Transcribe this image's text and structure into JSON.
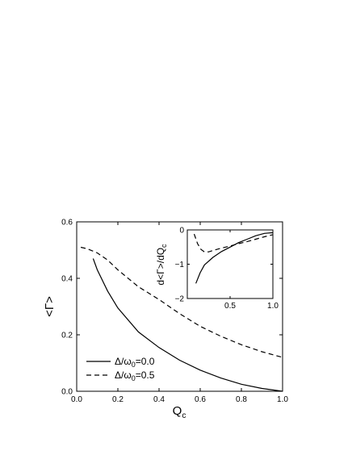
{
  "chart_data": [
    {
      "type": "line",
      "xlabel_main": "Q",
      "xlabel_sub": "c",
      "ylabel": "<Γ>",
      "xlim": [
        0.0,
        1.0
      ],
      "ylim": [
        0.0,
        0.6
      ],
      "xticks": [
        "0.0",
        "0.2",
        "0.4",
        "0.6",
        "0.8",
        "1.0"
      ],
      "xtick_values": [
        0.0,
        0.2,
        0.4,
        0.6,
        0.8,
        1.0
      ],
      "yticks": [
        "0.0",
        "0.2",
        "0.4",
        "0.6"
      ],
      "ytick_values": [
        0.0,
        0.2,
        0.4,
        0.6
      ],
      "legend_position": "bottom-left",
      "series": [
        {
          "name_main": "Δ/ω",
          "name_sub": "0",
          "name_rest": "=0.0",
          "style": "solid",
          "points": [
            [
              0.08,
              0.47
            ],
            [
              0.1,
              0.43
            ],
            [
              0.15,
              0.355
            ],
            [
              0.2,
              0.295
            ],
            [
              0.3,
              0.21
            ],
            [
              0.4,
              0.155
            ],
            [
              0.5,
              0.11
            ],
            [
              0.6,
              0.075
            ],
            [
              0.7,
              0.047
            ],
            [
              0.8,
              0.025
            ],
            [
              0.9,
              0.01
            ],
            [
              1.0,
              0.0
            ]
          ]
        },
        {
          "name_main": "Δ/ω",
          "name_sub": "0",
          "name_rest": "=0.5",
          "style": "dashed",
          "points": [
            [
              0.02,
              0.51
            ],
            [
              0.05,
              0.505
            ],
            [
              0.1,
              0.49
            ],
            [
              0.15,
              0.465
            ],
            [
              0.2,
              0.43
            ],
            [
              0.3,
              0.37
            ],
            [
              0.4,
              0.325
            ],
            [
              0.5,
              0.275
            ],
            [
              0.6,
              0.23
            ],
            [
              0.7,
              0.195
            ],
            [
              0.8,
              0.165
            ],
            [
              0.9,
              0.14
            ],
            [
              1.0,
              0.12
            ]
          ]
        }
      ]
    },
    {
      "type": "line",
      "role": "inset",
      "ylabel": "d<Γ>/dQ",
      "ylabel_sub": "c",
      "xlim": [
        0.0,
        1.0
      ],
      "ylim": [
        -2.0,
        0.0
      ],
      "xticks": [
        "0.5",
        "1.0"
      ],
      "xtick_values": [
        0.5,
        1.0
      ],
      "yticks": [
        "0",
        "−1",
        "−2"
      ],
      "ytick_values": [
        0,
        -1,
        -2
      ],
      "series": [
        {
          "style": "solid",
          "points": [
            [
              0.1,
              -1.56
            ],
            [
              0.15,
              -1.25
            ],
            [
              0.2,
              -1.02
            ],
            [
              0.3,
              -0.8
            ],
            [
              0.4,
              -0.63
            ],
            [
              0.5,
              -0.5
            ],
            [
              0.6,
              -0.37
            ],
            [
              0.7,
              -0.27
            ],
            [
              0.8,
              -0.17
            ],
            [
              0.9,
              -0.1
            ],
            [
              1.0,
              -0.08
            ]
          ]
        },
        {
          "style": "dashed",
          "points": [
            [
              0.08,
              -0.12
            ],
            [
              0.12,
              -0.4
            ],
            [
              0.16,
              -0.57
            ],
            [
              0.2,
              -0.64
            ],
            [
              0.25,
              -0.64
            ],
            [
              0.3,
              -0.6
            ],
            [
              0.4,
              -0.53
            ],
            [
              0.5,
              -0.47
            ],
            [
              0.6,
              -0.4
            ],
            [
              0.7,
              -0.34
            ],
            [
              0.8,
              -0.27
            ],
            [
              0.9,
              -0.2
            ],
            [
              1.0,
              -0.14
            ]
          ]
        }
      ]
    }
  ]
}
